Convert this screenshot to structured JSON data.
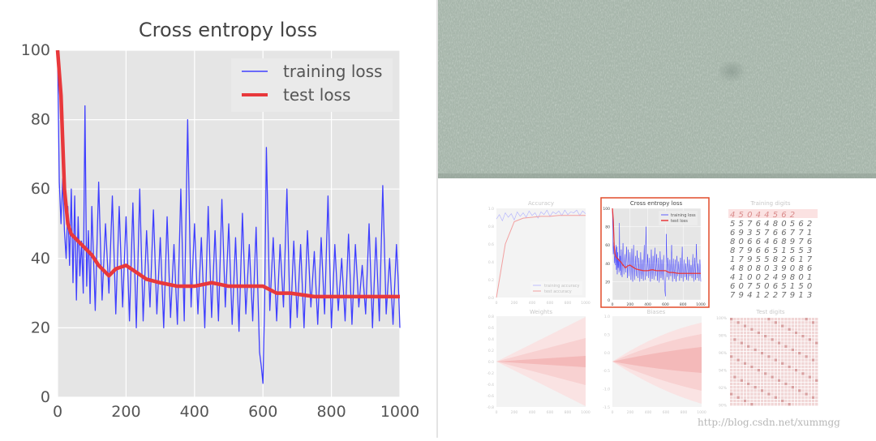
{
  "chart_data": {
    "type": "line",
    "title": "Cross entropy loss",
    "xlabel": "",
    "ylabel": "",
    "xlim": [
      0,
      1000
    ],
    "ylim": [
      0,
      100
    ],
    "xticks": [
      0,
      200,
      400,
      600,
      800,
      1000
    ],
    "yticks": [
      0,
      20,
      40,
      60,
      80,
      100
    ],
    "grid": true,
    "legend_position": "top-right",
    "series": [
      {
        "name": "training loss",
        "color": "#3f3fff",
        "x": [
          0,
          5,
          10,
          15,
          20,
          25,
          30,
          35,
          40,
          45,
          50,
          55,
          60,
          65,
          70,
          75,
          80,
          85,
          90,
          95,
          100,
          110,
          120,
          130,
          140,
          150,
          160,
          170,
          180,
          190,
          200,
          210,
          220,
          230,
          240,
          250,
          260,
          270,
          280,
          290,
          300,
          310,
          320,
          330,
          340,
          350,
          360,
          370,
          380,
          390,
          400,
          410,
          420,
          430,
          440,
          450,
          460,
          470,
          480,
          490,
          500,
          510,
          520,
          530,
          540,
          550,
          560,
          570,
          580,
          590,
          595,
          600,
          605,
          610,
          620,
          630,
          640,
          650,
          660,
          670,
          680,
          690,
          700,
          710,
          720,
          730,
          740,
          750,
          760,
          770,
          780,
          790,
          800,
          810,
          820,
          830,
          840,
          850,
          860,
          870,
          880,
          890,
          900,
          910,
          920,
          930,
          940,
          950,
          960,
          970,
          980,
          990,
          995,
          1000
        ],
        "values": [
          99,
          62,
          50,
          63,
          48,
          40,
          55,
          38,
          60,
          33,
          58,
          28,
          52,
          35,
          45,
          30,
          84,
          32,
          48,
          27,
          55,
          25,
          62,
          28,
          50,
          30,
          58,
          24,
          55,
          26,
          52,
          22,
          56,
          20,
          60,
          22,
          48,
          26,
          54,
          24,
          46,
          20,
          52,
          23,
          44,
          21,
          60,
          22,
          80,
          26,
          50,
          24,
          46,
          20,
          55,
          23,
          48,
          22,
          57,
          26,
          50,
          21,
          46,
          19,
          53,
          24,
          44,
          22,
          49,
          13,
          9,
          4,
          28,
          72,
          25,
          46,
          22,
          44,
          26,
          60,
          20,
          45,
          23,
          44,
          20,
          48,
          26,
          42,
          21,
          46,
          24,
          58,
          20,
          44,
          25,
          40,
          22,
          47,
          21,
          44,
          26,
          38,
          24,
          50,
          20,
          46,
          22,
          61,
          24,
          40,
          21,
          44,
          34,
          20
        ]
      },
      {
        "name": "test loss",
        "color": "#e8383b",
        "x": [
          0,
          10,
          20,
          30,
          40,
          50,
          60,
          80,
          100,
          120,
          140,
          150,
          170,
          200,
          230,
          260,
          300,
          350,
          400,
          450,
          500,
          550,
          600,
          640,
          680,
          750,
          800,
          850,
          900,
          950,
          1000
        ],
        "values": [
          100,
          87,
          60,
          50,
          47,
          46,
          45,
          43,
          41,
          38,
          36,
          35,
          37,
          38,
          36,
          34,
          33,
          32,
          32,
          33,
          32,
          32,
          32,
          30,
          30,
          29,
          29,
          29,
          29,
          29,
          29
        ]
      }
    ]
  },
  "thumbnails": {
    "titles": [
      "Accuracy",
      "Cross entropy loss",
      "Training digits",
      "Weights",
      "Biases",
      "Test digits"
    ],
    "accuracy_legend": [
      "training accuracy",
      "test accuracy"
    ],
    "loss_legend": [
      "training loss",
      "test loss"
    ],
    "accuracy_yticks": [
      "1.0",
      "0.8",
      "0.6",
      "0.4",
      "0.2",
      "0.0"
    ],
    "loss_yticks": [
      "100",
      "80",
      "60",
      "40",
      "20",
      "0"
    ],
    "weights_yticks": [
      "0.8",
      "0.6",
      "0.4",
      "0.2",
      "0.0",
      "-0.2",
      "-0.4",
      "-0.6",
      "-0.8"
    ],
    "biases_yticks": [
      "1.0",
      "0.5",
      "0.0",
      "-0.5",
      "-1.0",
      "-1.5"
    ],
    "testdigits_yticks": [
      "100%",
      "98%",
      "96%",
      "94%",
      "92%",
      "90%"
    ],
    "xticks": [
      "0",
      "200",
      "400",
      "600",
      "800",
      "1000"
    ],
    "training_digit_rows": [
      "4 5 0 4 4 5 6 2",
      "5 5 7 6 4 8 0 5 6 2",
      "6 9 3 5 7 6 6 7 7 1",
      "8 0 6 6 4 6 8 9 7 6",
      "8 7 9 6 6 5 1 5 5 3",
      "1 7 9 5 5 8 2 6 1 7",
      "4 8 0 8 0 3 9 0 8 6",
      "4 1 0 0 2 4 9 8 0 1",
      "6 0 7 5 0 6 5 1 5 0",
      "7 9 4 1 2 2 7 9 1 3"
    ]
  },
  "watermark": "http://blog.csdn.net/xummgg"
}
